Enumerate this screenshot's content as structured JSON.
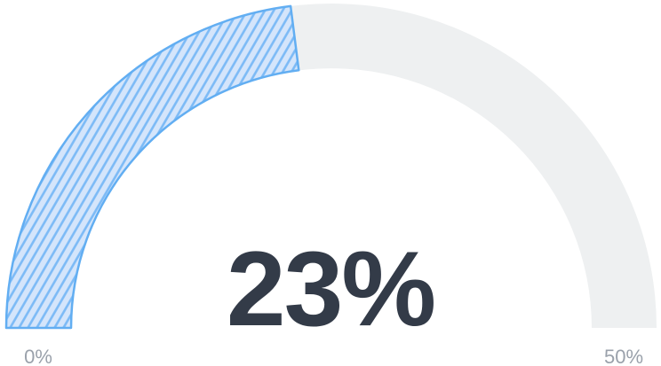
{
  "chart_data": {
    "type": "gauge",
    "value": 23,
    "unit": "%",
    "display_value": "23%",
    "min": 0,
    "max": 50,
    "min_label": "0%",
    "max_label": "50%",
    "start_angle_deg": 180,
    "end_angle_deg": 0,
    "shape": "semicircle-donut",
    "fill_pattern": "diagonal-hatch",
    "legend": "none",
    "colors": {
      "track": "#eef0f1",
      "fill_base": "#d4e5fb",
      "fill_stripe": "#7cbaf6",
      "fill_border": "#62aef2",
      "value_text": "#333b48",
      "label_text": "#9aa1ab",
      "background": "#ffffff"
    }
  }
}
